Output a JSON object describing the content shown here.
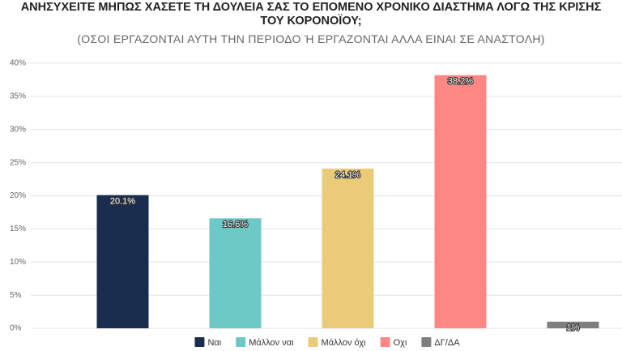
{
  "chart_data": {
    "type": "bar",
    "title": "ΑΝΗΣΥΧΕΙΤΕ ΜΗΠΩΣ ΧΑΣΕΤΕ ΤΗ ΔΟΥΛΕΙΑ ΣΑΣ ΤΟ ΕΠΟΜΕΝΟ ΧΡΟΝΙΚΟ ΔΙΑΣΤΗΜΑ ΛΟΓΩ ΤΗΣ ΚΡΙΣΗΣ ΤΟΥ ΚΟΡΟΝΟΪΟΥ;",
    "subtitle": "(ΟΣΟΙ ΕΡΓΑΖΟΝΤΑΙ ΑΥΤΗ ΤΗΝ ΠΕΡΙΟΔΟ Ή ΕΡΓΑΖΟΝΤΑΙ ΑΛΛΑ ΕΙΝΑΙ ΣΕ ΑΝΑΣΤΟΛΗ)",
    "categories": [
      "Ναι",
      "Μάλλον ναι",
      "Μάλλον όχι",
      "Οχι",
      "ΔΓ/ΔΑ"
    ],
    "values": [
      20.1,
      16.6,
      24.1,
      38.2,
      1
    ],
    "value_labels": [
      "20.1%",
      "16.6%",
      "24.1%",
      "38.2%",
      "1%"
    ],
    "colors": [
      "#1b2d4f",
      "#6cc9c5",
      "#e9cb7a",
      "#fd8785",
      "#7f7f7f"
    ],
    "ylim": [
      0,
      40
    ],
    "yticks": [
      {
        "value": 0,
        "label": "0%"
      },
      {
        "value": 5,
        "label": "5%"
      },
      {
        "value": 10,
        "label": "10%"
      },
      {
        "value": 15,
        "label": "15%"
      },
      {
        "value": 20,
        "label": "20%"
      },
      {
        "value": 25,
        "label": "25%"
      },
      {
        "value": 30,
        "label": "30%"
      },
      {
        "value": 35,
        "label": "35%"
      },
      {
        "value": 40,
        "label": "40%"
      }
    ],
    "grid": true,
    "legend": "bottom"
  }
}
